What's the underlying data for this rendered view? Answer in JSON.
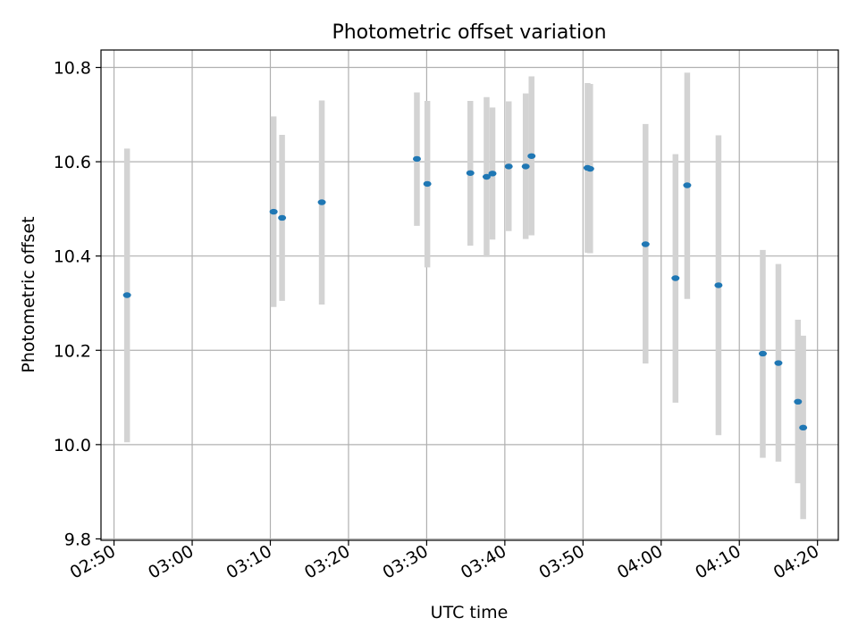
{
  "chart_data": {
    "type": "scatter",
    "title": "Photometric offset variation",
    "xlabel": "UTC time",
    "ylabel": "Photometric offset",
    "xlim": [
      "02:48:20",
      "04:22:40"
    ],
    "ylim": [
      9.797,
      10.837
    ],
    "grid": true,
    "x_ticks": [
      "02:50",
      "03:00",
      "03:10",
      "03:20",
      "03:30",
      "03:40",
      "03:50",
      "04:00",
      "04:10",
      "04:20"
    ],
    "y_ticks": [
      "9.8",
      "10.0",
      "10.2",
      "10.4",
      "10.6",
      "10.8"
    ],
    "colors": {
      "points": "#1f77b4",
      "error_bars": "#d3d3d3",
      "grid": "#b0b0b0"
    },
    "series": [
      {
        "points": [
          {
            "x": "02:51:40",
            "y": 10.317,
            "yerr_low": 10.005,
            "yerr_high": 10.628
          },
          {
            "x": "03:10:25",
            "y": 10.494,
            "yerr_low": 10.292,
            "yerr_high": 10.696
          },
          {
            "x": "03:11:30",
            "y": 10.481,
            "yerr_low": 10.305,
            "yerr_high": 10.657
          },
          {
            "x": "03:16:35",
            "y": 10.514,
            "yerr_low": 10.297,
            "yerr_high": 10.73
          },
          {
            "x": "03:28:45",
            "y": 10.606,
            "yerr_low": 10.464,
            "yerr_high": 10.747
          },
          {
            "x": "03:30:05",
            "y": 10.553,
            "yerr_low": 10.376,
            "yerr_high": 10.729
          },
          {
            "x": "03:35:35",
            "y": 10.576,
            "yerr_low": 10.422,
            "yerr_high": 10.729
          },
          {
            "x": "03:37:40",
            "y": 10.568,
            "yerr_low": 10.398,
            "yerr_high": 10.737
          },
          {
            "x": "03:38:25",
            "y": 10.575,
            "yerr_low": 10.435,
            "yerr_high": 10.715
          },
          {
            "x": "03:40:30",
            "y": 10.59,
            "yerr_low": 10.453,
            "yerr_high": 10.728
          },
          {
            "x": "03:42:40",
            "y": 10.59,
            "yerr_low": 10.436,
            "yerr_high": 10.745
          },
          {
            "x": "03:43:25",
            "y": 10.612,
            "yerr_low": 10.444,
            "yerr_high": 10.781
          },
          {
            "x": "03:50:35",
            "y": 10.587,
            "yerr_low": 10.407,
            "yerr_high": 10.767
          },
          {
            "x": "03:50:55",
            "y": 10.585,
            "yerr_low": 10.406,
            "yerr_high": 10.765
          },
          {
            "x": "03:58:00",
            "y": 10.425,
            "yerr_low": 10.172,
            "yerr_high": 10.68
          },
          {
            "x": "04:01:50",
            "y": 10.353,
            "yerr_low": 10.089,
            "yerr_high": 10.616
          },
          {
            "x": "04:03:20",
            "y": 10.55,
            "yerr_low": 10.309,
            "yerr_high": 10.789
          },
          {
            "x": "04:07:20",
            "y": 10.338,
            "yerr_low": 10.02,
            "yerr_high": 10.656
          },
          {
            "x": "04:13:00",
            "y": 10.193,
            "yerr_low": 9.972,
            "yerr_high": 10.413
          },
          {
            "x": "04:15:00",
            "y": 10.173,
            "yerr_low": 9.964,
            "yerr_high": 10.383
          },
          {
            "x": "04:17:30",
            "y": 10.091,
            "yerr_low": 9.918,
            "yerr_high": 10.265
          },
          {
            "x": "04:18:10",
            "y": 10.036,
            "yerr_low": 9.842,
            "yerr_high": 10.231
          }
        ]
      }
    ]
  }
}
